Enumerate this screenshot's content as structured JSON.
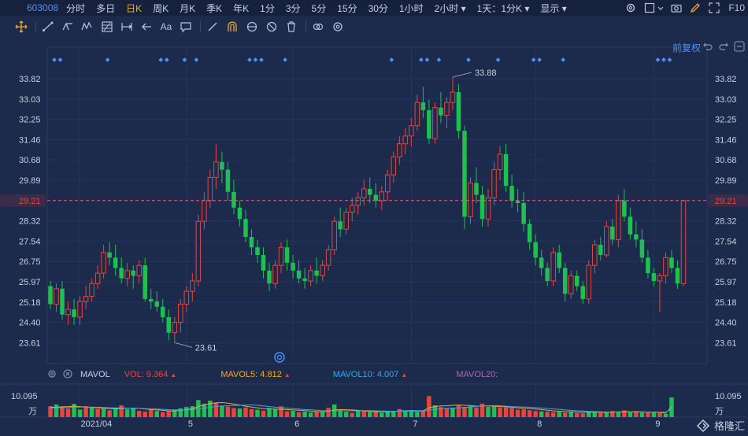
{
  "header": {
    "ticker": "603008",
    "periods": [
      {
        "label": "分时",
        "active": false
      },
      {
        "label": "多日",
        "active": false
      },
      {
        "label": "日K",
        "active": true
      },
      {
        "label": "周K",
        "active": false
      },
      {
        "label": "月K",
        "active": false
      },
      {
        "label": "季K",
        "active": false
      },
      {
        "label": "年K",
        "active": false
      },
      {
        "label": "1分",
        "active": false
      },
      {
        "label": "3分",
        "active": false
      },
      {
        "label": "5分",
        "active": false
      },
      {
        "label": "15分",
        "active": false
      },
      {
        "label": "30分",
        "active": false
      },
      {
        "label": "1小时",
        "active": false
      },
      {
        "label": "2小时 ▾",
        "active": false
      },
      {
        "label": "1天：1分K ▾",
        "active": false
      },
      {
        "label": "显示 ▾",
        "active": false
      }
    ],
    "f10": "F10"
  },
  "toolbar": {
    "text_tool": "Aa"
  },
  "adjust": {
    "label": "前复权"
  },
  "price_axis": {
    "ticks": [
      "33.82",
      "33.03",
      "32.25",
      "31.46",
      "30.68",
      "29.89",
      "29.21",
      "28.32",
      "27.54",
      "26.75",
      "25.97",
      "25.18",
      "24.40",
      "23.61"
    ],
    "current": "29.21",
    "high_label": "33.88",
    "low_label": "23.61"
  },
  "time_axis": {
    "labels": [
      "2021/04",
      "5",
      "6",
      "7",
      "8",
      "9"
    ]
  },
  "indicator": {
    "name": "MAVOL",
    "vol": "VOL: 9.364",
    "ma5": "MAVOL5: 4.812",
    "ma10": "MAVOL10: 4.007",
    "ma20": "MAVOL20:"
  },
  "volume_axis": {
    "top": "10.095",
    "unit": "万"
  },
  "brand": {
    "name": "格隆汇"
  },
  "colors": {
    "up": "#e8453c",
    "down": "#1fbf54",
    "accent": "#f0a830",
    "blue": "#4f8ff7",
    "bg": "#1c2a4c"
  },
  "chart_data": {
    "type": "candlestick",
    "ohlc": [
      [
        25.8,
        26.0,
        24.9,
        25.1
      ],
      [
        25.1,
        25.9,
        24.8,
        25.7
      ],
      [
        25.7,
        26.0,
        24.5,
        24.7
      ],
      [
        24.7,
        25.2,
        24.3,
        24.9
      ],
      [
        24.9,
        25.3,
        24.3,
        24.6
      ],
      [
        24.6,
        25.4,
        24.3,
        25.2
      ],
      [
        25.2,
        25.8,
        24.9,
        25.4
      ],
      [
        25.4,
        26.1,
        25.2,
        25.9
      ],
      [
        25.9,
        26.6,
        25.7,
        26.3
      ],
      [
        26.3,
        27.4,
        26.1,
        27.1
      ],
      [
        27.1,
        27.5,
        26.6,
        26.9
      ],
      [
        26.9,
        27.4,
        26.2,
        26.5
      ],
      [
        26.5,
        26.9,
        25.9,
        26.1
      ],
      [
        26.1,
        26.7,
        25.8,
        26.4
      ],
      [
        26.4,
        26.6,
        25.7,
        26.2
      ],
      [
        26.2,
        26.8,
        25.9,
        26.6
      ],
      [
        26.6,
        26.9,
        25.2,
        25.3
      ],
      [
        25.3,
        25.7,
        24.9,
        25.2
      ],
      [
        25.2,
        25.6,
        24.8,
        25.0
      ],
      [
        25.0,
        25.3,
        24.4,
        24.6
      ],
      [
        24.6,
        24.9,
        23.7,
        24.0
      ],
      [
        24.0,
        24.6,
        23.61,
        24.4
      ],
      [
        24.4,
        25.3,
        24.0,
        25.1
      ],
      [
        25.1,
        25.8,
        24.8,
        25.6
      ],
      [
        25.6,
        26.3,
        25.2,
        26.0
      ],
      [
        26.0,
        28.6,
        25.8,
        28.3
      ],
      [
        28.3,
        29.5,
        28.0,
        29.2
      ],
      [
        29.2,
        30.3,
        28.9,
        30.0
      ],
      [
        30.0,
        31.3,
        29.6,
        30.6
      ],
      [
        30.6,
        31.0,
        29.8,
        30.3
      ],
      [
        30.3,
        30.6,
        29.2,
        29.5
      ],
      [
        29.5,
        29.9,
        28.6,
        28.9
      ],
      [
        28.9,
        29.2,
        28.1,
        28.4
      ],
      [
        28.4,
        28.8,
        27.5,
        27.7
      ],
      [
        27.7,
        28.0,
        27.0,
        27.3
      ],
      [
        27.3,
        27.6,
        26.7,
        27.0
      ],
      [
        27.0,
        27.3,
        26.1,
        26.4
      ],
      [
        26.4,
        26.7,
        25.6,
        25.9
      ],
      [
        25.9,
        26.8,
        25.7,
        26.6
      ],
      [
        26.6,
        27.5,
        26.3,
        27.3
      ],
      [
        27.3,
        27.6,
        26.4,
        26.7
      ],
      [
        26.7,
        27.0,
        26.1,
        26.4
      ],
      [
        26.4,
        26.8,
        25.9,
        26.1
      ],
      [
        26.1,
        26.5,
        25.7,
        26.0
      ],
      [
        26.0,
        26.6,
        25.8,
        26.4
      ],
      [
        26.4,
        26.9,
        25.9,
        26.2
      ],
      [
        26.2,
        26.8,
        26.0,
        26.6
      ],
      [
        26.6,
        27.4,
        26.4,
        27.2
      ],
      [
        27.2,
        28.5,
        27.0,
        28.3
      ],
      [
        28.3,
        28.9,
        27.7,
        28.0
      ],
      [
        28.0,
        28.9,
        27.8,
        28.7
      ],
      [
        28.7,
        29.3,
        28.3,
        29.0
      ],
      [
        29.0,
        29.5,
        28.6,
        29.3
      ],
      [
        29.3,
        29.9,
        29.0,
        29.6
      ],
      [
        29.6,
        30.0,
        29.1,
        29.4
      ],
      [
        29.4,
        29.8,
        28.9,
        29.2
      ],
      [
        29.2,
        29.7,
        28.8,
        29.5
      ],
      [
        29.5,
        30.3,
        29.2,
        30.1
      ],
      [
        30.1,
        31.0,
        29.8,
        30.8
      ],
      [
        30.8,
        31.6,
        30.5,
        31.3
      ],
      [
        31.3,
        31.9,
        30.9,
        31.6
      ],
      [
        31.6,
        32.3,
        31.2,
        32.0
      ],
      [
        32.0,
        33.2,
        31.8,
        32.9
      ],
      [
        32.9,
        33.5,
        32.3,
        32.6
      ],
      [
        32.6,
        33.0,
        31.3,
        31.5
      ],
      [
        31.5,
        32.9,
        31.3,
        32.7
      ],
      [
        32.7,
        33.3,
        32.1,
        32.4
      ],
      [
        32.4,
        33.1,
        31.9,
        32.9
      ],
      [
        32.9,
        33.88,
        32.6,
        33.3
      ],
      [
        33.3,
        33.6,
        31.5,
        31.8
      ],
      [
        31.8,
        32.0,
        28.0,
        28.5
      ],
      [
        28.5,
        30.0,
        28.2,
        29.8
      ],
      [
        29.8,
        30.4,
        29.1,
        29.4
      ],
      [
        29.4,
        29.7,
        28.1,
        28.4
      ],
      [
        28.4,
        29.6,
        28.1,
        29.3
      ],
      [
        29.3,
        30.6,
        29.0,
        30.3
      ],
      [
        30.3,
        31.2,
        29.9,
        30.9
      ],
      [
        30.9,
        31.3,
        29.5,
        29.7
      ],
      [
        29.7,
        30.1,
        28.9,
        29.2
      ],
      [
        29.2,
        29.6,
        28.7,
        29.1
      ],
      [
        29.1,
        29.5,
        27.9,
        28.2
      ],
      [
        28.2,
        28.4,
        27.2,
        27.5
      ],
      [
        27.5,
        27.8,
        26.6,
        26.9
      ],
      [
        26.9,
        27.2,
        26.2,
        26.5
      ],
      [
        26.5,
        26.7,
        25.8,
        26.0
      ],
      [
        26.0,
        27.3,
        25.8,
        27.1
      ],
      [
        27.1,
        27.4,
        26.3,
        26.5
      ],
      [
        26.5,
        26.7,
        25.2,
        25.5
      ],
      [
        25.5,
        26.4,
        25.3,
        26.2
      ],
      [
        26.2,
        26.4,
        25.6,
        25.8
      ],
      [
        25.8,
        26.0,
        25.1,
        25.3
      ],
      [
        25.3,
        26.8,
        25.1,
        26.6
      ],
      [
        26.6,
        27.6,
        26.3,
        27.4
      ],
      [
        27.4,
        27.7,
        26.8,
        27.0
      ],
      [
        27.0,
        28.3,
        26.9,
        28.1
      ],
      [
        28.1,
        28.4,
        27.4,
        27.6
      ],
      [
        27.6,
        29.4,
        27.3,
        29.2
      ],
      [
        29.2,
        29.6,
        28.3,
        28.5
      ],
      [
        28.5,
        28.9,
        27.6,
        27.8
      ],
      [
        27.8,
        28.3,
        27.3,
        27.6
      ],
      [
        27.6,
        28.0,
        26.7,
        26.9
      ],
      [
        26.9,
        27.2,
        26.1,
        26.3
      ],
      [
        26.3,
        26.5,
        25.8,
        26.0
      ],
      [
        26.0,
        26.3,
        24.8,
        26.2
      ],
      [
        26.2,
        27.1,
        25.9,
        26.9
      ],
      [
        26.9,
        27.2,
        26.3,
        26.5
      ],
      [
        26.5,
        26.8,
        25.7,
        25.9
      ],
      [
        25.9,
        29.21,
        25.8,
        29.21
      ]
    ],
    "volume": [
      [
        5.2,
        1
      ],
      [
        6.0,
        0
      ],
      [
        4.9,
        1
      ],
      [
        4.1,
        1
      ],
      [
        6.3,
        0
      ],
      [
        3.6,
        0
      ],
      [
        5.2,
        1
      ],
      [
        4.9,
        0
      ],
      [
        3.8,
        1
      ],
      [
        4.0,
        0
      ],
      [
        3.3,
        1
      ],
      [
        4.4,
        0
      ],
      [
        5.6,
        1
      ],
      [
        3.7,
        0
      ],
      [
        4.4,
        0
      ],
      [
        3.0,
        1
      ],
      [
        2.6,
        1
      ],
      [
        3.5,
        1
      ],
      [
        2.9,
        0
      ],
      [
        2.4,
        1
      ],
      [
        3.0,
        1
      ],
      [
        3.6,
        0
      ],
      [
        4.2,
        0
      ],
      [
        4.8,
        0
      ],
      [
        5.2,
        0
      ],
      [
        8.1,
        0
      ],
      [
        6.3,
        0
      ],
      [
        7.8,
        0
      ],
      [
        6.7,
        1
      ],
      [
        5.4,
        0
      ],
      [
        5.0,
        1
      ],
      [
        4.3,
        1
      ],
      [
        4.1,
        0
      ],
      [
        4.6,
        1
      ],
      [
        3.8,
        1
      ],
      [
        3.5,
        0
      ],
      [
        3.1,
        1
      ],
      [
        4.3,
        0
      ],
      [
        3.9,
        0
      ],
      [
        5.1,
        1
      ],
      [
        2.8,
        1
      ],
      [
        3.0,
        0
      ],
      [
        2.4,
        1
      ],
      [
        2.6,
        0
      ],
      [
        2.2,
        0
      ],
      [
        2.6,
        1
      ],
      [
        2.4,
        0
      ],
      [
        4.4,
        1
      ],
      [
        6.0,
        0
      ],
      [
        3.3,
        0
      ],
      [
        2.5,
        0
      ],
      [
        2.0,
        1
      ],
      [
        2.8,
        0
      ],
      [
        3.1,
        1
      ],
      [
        2.5,
        0
      ],
      [
        2.9,
        1
      ],
      [
        2.1,
        0
      ],
      [
        2.7,
        0
      ],
      [
        3.0,
        0
      ],
      [
        3.8,
        1
      ],
      [
        3.0,
        0
      ],
      [
        2.9,
        0
      ],
      [
        2.5,
        0
      ],
      [
        3.2,
        1
      ],
      [
        10.0,
        1
      ],
      [
        5.6,
        0
      ],
      [
        4.8,
        1
      ],
      [
        4.2,
        1
      ],
      [
        4.4,
        0
      ],
      [
        5.5,
        1
      ],
      [
        4.8,
        1
      ],
      [
        5.2,
        0
      ],
      [
        4.6,
        1
      ],
      [
        6.4,
        1
      ],
      [
        4.9,
        0
      ],
      [
        5.0,
        0
      ],
      [
        4.6,
        1
      ],
      [
        4.6,
        1
      ],
      [
        4.4,
        1
      ],
      [
        3.5,
        1
      ],
      [
        3.7,
        1
      ],
      [
        3.3,
        1
      ],
      [
        2.9,
        1
      ],
      [
        2.7,
        0
      ],
      [
        2.6,
        1
      ],
      [
        2.3,
        1
      ],
      [
        2.5,
        0
      ],
      [
        2.1,
        1
      ],
      [
        2.5,
        0
      ],
      [
        1.9,
        1
      ],
      [
        1.8,
        1
      ],
      [
        2.6,
        0
      ],
      [
        2.6,
        0
      ],
      [
        2.1,
        1
      ],
      [
        2.4,
        0
      ],
      [
        2.9,
        1
      ],
      [
        2.7,
        0
      ],
      [
        3.2,
        1
      ],
      [
        2.2,
        0
      ],
      [
        2.8,
        1
      ],
      [
        2.1,
        0
      ],
      [
        2.2,
        1
      ],
      [
        2.5,
        0
      ],
      [
        1.9,
        1
      ],
      [
        1.6,
        0
      ],
      [
        9.36,
        0
      ]
    ],
    "ma5": [
      4.6,
      4.7,
      4.9,
      5.0,
      5.2,
      5.0,
      4.8,
      4.6,
      4.4,
      4.2,
      4.0,
      3.9,
      4.1,
      4.2,
      4.3,
      4.1,
      3.9,
      3.6,
      3.4,
      3.2,
      3.0,
      2.9,
      3.2,
      3.5,
      4.0,
      5.0,
      5.8,
      6.4,
      6.8,
      6.9,
      6.6,
      6.2,
      5.7,
      5.2,
      4.8,
      4.4,
      4.0,
      3.9,
      3.8,
      3.7,
      3.6,
      3.4,
      3.3,
      3.1,
      2.9,
      2.6,
      2.5,
      2.8,
      3.4,
      3.6,
      3.5,
      3.4,
      3.2,
      3.0,
      2.7,
      2.6,
      2.5,
      2.6,
      2.7,
      2.9,
      3.0,
      3.1,
      3.0,
      3.0,
      4.4,
      5.0,
      5.3,
      5.4,
      5.6,
      5.7,
      5.6,
      5.5,
      5.2,
      5.3,
      5.3,
      5.2,
      5.0,
      4.9,
      4.7,
      4.4,
      4.2,
      4.0,
      3.8,
      3.6,
      3.3,
      3.0,
      2.8,
      2.6,
      2.5,
      2.4,
      2.3,
      2.3,
      2.3,
      2.3,
      2.2,
      2.3,
      2.4,
      2.6,
      2.5,
      2.6,
      2.5,
      2.4,
      2.3,
      2.2,
      2.0,
      4.81
    ],
    "ma10": [
      4.3,
      4.4,
      4.5,
      4.6,
      4.7,
      4.8,
      4.8,
      4.7,
      4.7,
      4.6,
      4.5,
      4.4,
      4.4,
      4.3,
      4.3,
      4.1,
      4.0,
      3.9,
      3.8,
      3.7,
      3.5,
      3.4,
      3.4,
      3.4,
      3.6,
      4.0,
      4.3,
      4.6,
      5.1,
      5.3,
      5.4,
      5.5,
      5.6,
      5.7,
      5.8,
      5.6,
      5.3,
      5.0,
      4.7,
      4.5,
      4.3,
      4.0,
      3.8,
      3.6,
      3.5,
      3.3,
      3.1,
      3.0,
      3.0,
      3.0,
      3.0,
      3.0,
      3.0,
      3.1,
      3.1,
      3.0,
      2.9,
      2.8,
      2.8,
      2.8,
      2.8,
      2.8,
      2.8,
      2.8,
      3.3,
      3.7,
      4.0,
      4.2,
      4.3,
      4.4,
      4.6,
      4.8,
      5.1,
      5.3,
      5.4,
      5.5,
      5.4,
      5.2,
      5.0,
      4.9,
      4.8,
      4.7,
      4.5,
      4.3,
      4.1,
      3.9,
      3.7,
      3.4,
      3.2,
      3.0,
      2.9,
      2.7,
      2.6,
      2.5,
      2.4,
      2.4,
      2.4,
      2.4,
      2.4,
      2.4,
      2.4,
      2.4,
      2.4,
      2.4,
      2.3,
      4.01
    ]
  }
}
